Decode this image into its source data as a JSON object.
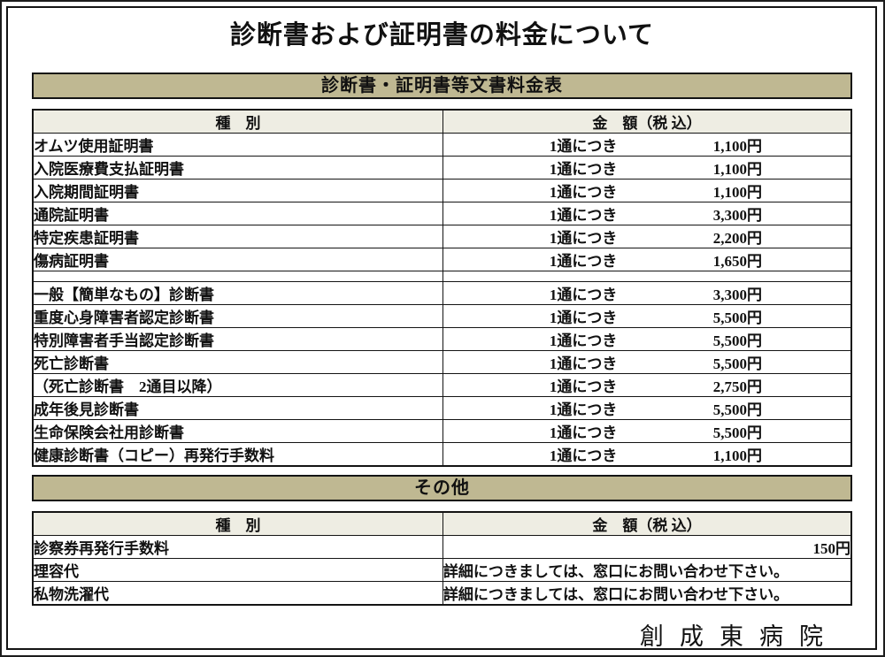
{
  "document": {
    "title": "診断書および証明書の料金について",
    "footer_signature": "創成東病院"
  },
  "fee_table": {
    "section_title": "診断書・証明書等文書料金表",
    "col_type": "種　別",
    "col_amount": "金　額（税 込）",
    "per_unit": "1通につき",
    "rows": [
      {
        "label": "オムツ使用証明書",
        "price": "1,100円"
      },
      {
        "label": "入院医療費支払証明書",
        "price": "1,100円"
      },
      {
        "label": "入院期間証明書",
        "price": "1,100円"
      },
      {
        "label": "通院証明書",
        "price": "3,300円"
      },
      {
        "label": "特定疾患証明書",
        "price": "2,200円"
      },
      {
        "label": "傷病証明書",
        "price": "1,650円"
      },
      {
        "separator": true
      },
      {
        "label": "一般【簡単なもの】診断書",
        "price": "3,300円"
      },
      {
        "label": "重度心身障害者認定診断書",
        "price": "5,500円"
      },
      {
        "label": "特別障害者手当認定診断書",
        "price": "5,500円"
      },
      {
        "label": "死亡診断書",
        "price": "5,500円"
      },
      {
        "label": "（死亡診断書　2通目以降）",
        "price": "2,750円"
      },
      {
        "label": "成年後見診断書",
        "price": "5,500円"
      },
      {
        "label": "生命保険会社用診断書",
        "price": "5,500円"
      },
      {
        "label": "健康診断書（コピー）再発行手数料",
        "price": "1,100円"
      }
    ]
  },
  "other_table": {
    "section_title": "その他",
    "col_type": "種　別",
    "col_amount": "金　額（税 込）",
    "rows": [
      {
        "label": "診察券再発行手数料",
        "amount": "150円",
        "align": "price"
      },
      {
        "label": "理容代",
        "amount": "詳細につきましては、窓口にお問い合わせ下さい。",
        "align": "note"
      },
      {
        "label": "私物洗濯代",
        "amount": "詳細につきましては、窓口にお問い合わせ下さい。",
        "align": "note"
      }
    ]
  },
  "colors": {
    "band_bg": "#bfb892",
    "header_bg": "#eeede3",
    "border": "#141414"
  }
}
